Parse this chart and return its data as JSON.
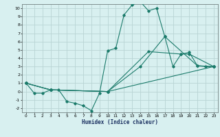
{
  "xlabel": "Humidex (Indice chaleur)",
  "bg_color": "#d8f0f0",
  "grid_color": "#b8d4d4",
  "line_color": "#1a7a6a",
  "xlim": [
    -0.5,
    23.5
  ],
  "ylim": [
    -2.5,
    10.5
  ],
  "xticks": [
    0,
    1,
    2,
    3,
    4,
    5,
    6,
    7,
    8,
    9,
    10,
    11,
    12,
    13,
    14,
    15,
    16,
    17,
    18,
    19,
    20,
    21,
    22,
    23
  ],
  "yticks": [
    -2,
    -1,
    0,
    1,
    2,
    3,
    4,
    5,
    6,
    7,
    8,
    9,
    10
  ],
  "series": [
    {
      "x": [
        0,
        1,
        2,
        3,
        4,
        5,
        6,
        7,
        8,
        9,
        10,
        11,
        12,
        13,
        14,
        15,
        16,
        17,
        18,
        19,
        20,
        21,
        22,
        23
      ],
      "y": [
        1.0,
        -0.2,
        -0.2,
        0.2,
        0.2,
        -1.2,
        -1.4,
        -1.7,
        -2.3,
        -0.2,
        4.9,
        5.2,
        9.2,
        10.4,
        10.8,
        9.7,
        10.0,
        6.6,
        3.0,
        4.5,
        4.7,
        3.1,
        3.0,
        3.0
      ]
    },
    {
      "x": [
        0,
        3,
        10,
        14,
        17,
        21,
        23
      ],
      "y": [
        1.0,
        0.2,
        0.0,
        3.0,
        6.6,
        3.1,
        3.0
      ]
    },
    {
      "x": [
        0,
        3,
        10,
        15,
        19,
        20,
        23
      ],
      "y": [
        1.0,
        0.2,
        0.0,
        4.8,
        4.5,
        4.5,
        3.0
      ]
    },
    {
      "x": [
        0,
        3,
        10,
        23
      ],
      "y": [
        1.0,
        0.2,
        0.0,
        3.0
      ]
    }
  ]
}
